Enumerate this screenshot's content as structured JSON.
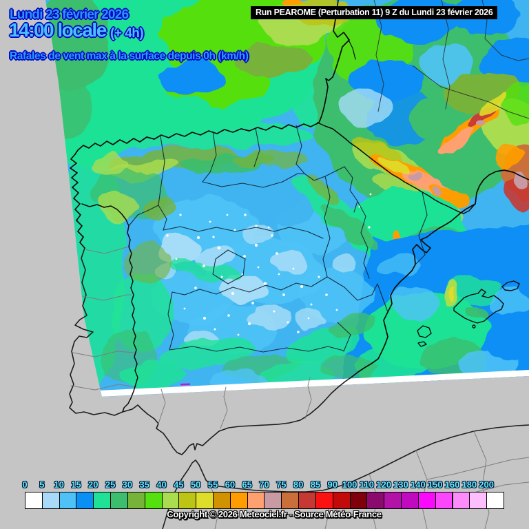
{
  "header": {
    "date": "Lundi 23 février 2026",
    "time": "14:00 locale",
    "offset": "(+ 4h)",
    "subtitle": "Rafales de vent max à la surface depuis 0h (km/h)"
  },
  "run_bar": {
    "text": "Run PEAROME (Perturbation 11) 9 Z du Lundi 23 février 2026"
  },
  "scale": {
    "labels": [
      "0",
      "5",
      "10",
      "15",
      "20",
      "25",
      "30",
      "35",
      "40",
      "45",
      "50",
      "55",
      "60",
      "65",
      "70",
      "75",
      "80",
      "85",
      "90",
      "100",
      "110",
      "120",
      "130",
      "140",
      "150",
      "160",
      "180",
      "200"
    ],
    "colors": [
      "#ffffff",
      "#a9d9f9",
      "#4ec2f7",
      "#0a8ff5",
      "#1fe296",
      "#3cbe6e",
      "#77b33b",
      "#55e010",
      "#a9dc4f",
      "#bcc414",
      "#dede2a",
      "#d09200",
      "#ff9d00",
      "#ffa070",
      "#c89ba4",
      "#c9703a",
      "#c63833",
      "#fa1212",
      "#c30a0a",
      "#7e000a",
      "#8a0a6e",
      "#b312a6",
      "#c00ac0",
      "#fa0afa",
      "#fc46fc",
      "#fc8cfc",
      "#fcbefc",
      "#ffffff"
    ]
  },
  "footer": {
    "copyright": "Copyright © 2026 Meteociel.fr - Source Météo-France"
  },
  "colors": {
    "date_text": "#2f93ff",
    "time_text": "#4cc0ff",
    "subtitle_text": "#2f9bff",
    "text_outline": "#0008c0",
    "tick_text": "#63e9f9",
    "background_gray": "#c5c5c5"
  }
}
